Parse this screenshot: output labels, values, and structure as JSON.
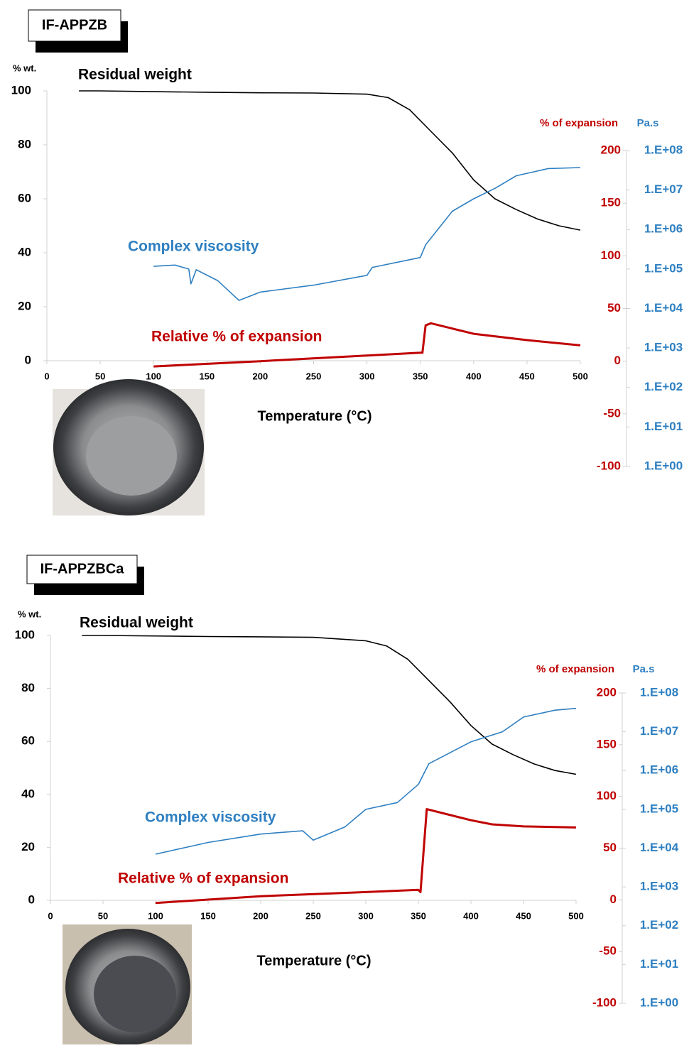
{
  "chart_data": [
    {
      "type": "line",
      "title": "IF-APPZB",
      "xlabel": "Temperature (°C)",
      "ylabel": "% wt.",
      "y2label": "% of expansion",
      "y3label": "Pa.s",
      "xlim": [
        0,
        500
      ],
      "xticks": [
        0,
        50,
        100,
        150,
        200,
        250,
        300,
        350,
        400,
        450,
        500
      ],
      "ylim": [
        0,
        100
      ],
      "yticks": [
        0,
        20,
        40,
        60,
        80,
        100
      ],
      "y2lim": [
        -100,
        200
      ],
      "y2ticks": [
        -100,
        -50,
        0,
        50,
        100,
        150,
        200
      ],
      "y3lim": [
        1,
        100000000
      ],
      "y3scale": "log",
      "y3ticks": [
        {
          "value": 1,
          "label": "1.E+00"
        },
        {
          "value": 10,
          "label": "1.E+01"
        },
        {
          "value": 100,
          "label": "1.E+02"
        },
        {
          "value": 1000,
          "label": "1.E+03"
        },
        {
          "value": 10000,
          "label": "1.E+04"
        },
        {
          "value": 100000,
          "label": "1.E+05"
        },
        {
          "value": 1000000,
          "label": "1.E+06"
        },
        {
          "value": 10000000,
          "label": "1.E+07"
        },
        {
          "value": 100000000,
          "label": "1.E+08"
        }
      ],
      "series": [
        {
          "name": "Residual weight",
          "color": "#000000",
          "axis": "y",
          "x": [
            30,
            50,
            100,
            150,
            200,
            250,
            300,
            320,
            340,
            360,
            380,
            400,
            420,
            440,
            460,
            480,
            500
          ],
          "values": [
            100,
            100,
            99.7,
            99.5,
            99.3,
            99.2,
            98.8,
            97.5,
            93,
            85,
            77,
            67,
            60,
            56,
            52.5,
            50,
            48.4
          ]
        },
        {
          "name": "Complex viscosity",
          "color": "#2e7fc1",
          "axis": "y3",
          "x": [
            100,
            120,
            133,
            135,
            140,
            160,
            180,
            200,
            250,
            300,
            305,
            350,
            355,
            380,
            400,
            420,
            440,
            470,
            500
          ],
          "values": [
            117000,
            126000,
            100000,
            42000,
            96000,
            51000,
            16000,
            26000,
            39000,
            69000,
            110000,
            195000,
            410000,
            2900000,
            6000000,
            11000000,
            23000000,
            35000000,
            37000000
          ]
        },
        {
          "name": "Relative % of expansion",
          "color": "#c00000",
          "axis": "y2",
          "x": [
            100,
            200,
            300,
            350,
            352,
            355,
            360,
            400,
            450,
            500
          ],
          "values": [
            -5,
            0,
            5.4,
            8,
            8,
            34,
            36,
            26,
            20,
            15
          ]
        }
      ]
    },
    {
      "type": "line",
      "title": "IF-APPZBCa",
      "xlabel": "Temperature (°C)",
      "ylabel": "% wt.",
      "y2label": "% of expansion",
      "y3label": "Pa.s",
      "xlim": [
        0,
        500
      ],
      "xticks": [
        0,
        50,
        100,
        150,
        200,
        250,
        300,
        350,
        400,
        450,
        500
      ],
      "ylim": [
        0,
        100
      ],
      "yticks": [
        0,
        20,
        40,
        60,
        80,
        100
      ],
      "y2lim": [
        -100,
        200
      ],
      "y2ticks": [
        -100,
        -50,
        0,
        50,
        100,
        150,
        200
      ],
      "y3lim": [
        1,
        100000000
      ],
      "y3scale": "log",
      "y3ticks": [
        {
          "value": 1,
          "label": "1.E+00"
        },
        {
          "value": 10,
          "label": "1.E+01"
        },
        {
          "value": 100,
          "label": "1.E+02"
        },
        {
          "value": 1000,
          "label": "1.E+03"
        },
        {
          "value": 10000,
          "label": "1.E+04"
        },
        {
          "value": 100000,
          "label": "1.E+05"
        },
        {
          "value": 1000000,
          "label": "1.E+06"
        },
        {
          "value": 10000000,
          "label": "1.E+07"
        },
        {
          "value": 100000000,
          "label": "1.E+08"
        }
      ],
      "series": [
        {
          "name": "Residual weight",
          "color": "#000000",
          "axis": "y",
          "x": [
            30,
            50,
            100,
            150,
            200,
            250,
            300,
            320,
            340,
            360,
            380,
            400,
            420,
            440,
            460,
            480,
            500
          ],
          "values": [
            100,
            100,
            99.8,
            99.6,
            99.5,
            99.3,
            98,
            96,
            91,
            83,
            75,
            66,
            59,
            55,
            51.5,
            49,
            47.6
          ]
        },
        {
          "name": "Complex viscosity",
          "color": "#2e7fc1",
          "axis": "y3",
          "x": [
            100,
            150,
            200,
            240,
            250,
            280,
            300,
            330,
            350,
            360,
            400,
            430,
            450,
            480,
            500
          ],
          "values": [
            7000,
            14000,
            23000,
            28000,
            16000,
            35000,
            100000,
            150000,
            440000,
            1500000,
            5500000,
            10000000,
            24000000,
            36000000,
            40000000
          ]
        },
        {
          "name": "Relative % of expansion",
          "color": "#c00000",
          "axis": "y2",
          "x": [
            100,
            200,
            300,
            350,
            352,
            358,
            400,
            420,
            450,
            500
          ],
          "values": [
            -3,
            3.5,
            7.5,
            9.6,
            7.5,
            87.7,
            77,
            73,
            71,
            70
          ]
        }
      ]
    }
  ]
}
